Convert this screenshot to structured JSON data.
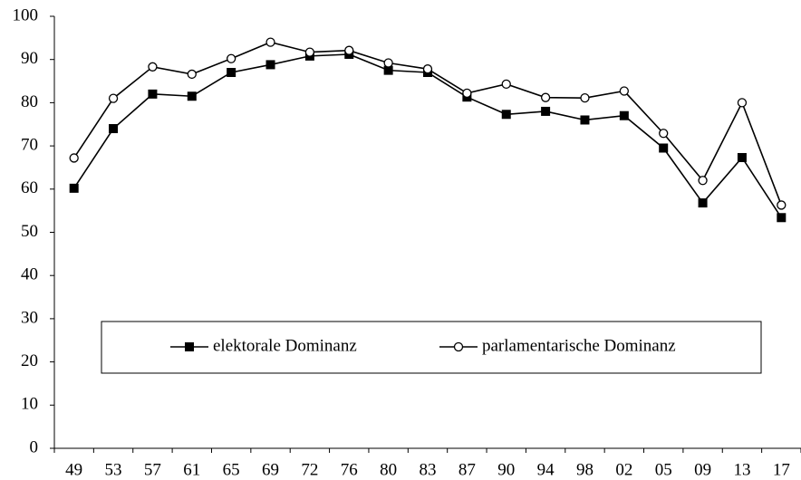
{
  "chart_data": {
    "type": "line",
    "categories": [
      "49",
      "53",
      "57",
      "61",
      "65",
      "69",
      "72",
      "76",
      "80",
      "83",
      "87",
      "90",
      "94",
      "98",
      "02",
      "05",
      "09",
      "13",
      "17"
    ],
    "series": [
      {
        "name": "elektorale Dominanz",
        "color": "#000000",
        "marker": "square",
        "values": [
          60.2,
          74,
          82,
          81.5,
          87,
          88.8,
          90.8,
          91.2,
          87.5,
          87,
          81.3,
          77.3,
          78,
          76,
          77,
          69.5,
          56.8,
          67.3,
          53.4
        ]
      },
      {
        "name": "parlamentarische Dominanz",
        "color": "#000000",
        "marker": "circle",
        "values": [
          67.2,
          81,
          88.3,
          86.6,
          90.2,
          94,
          91.7,
          92.1,
          89.2,
          87.8,
          82.2,
          84.3,
          81.2,
          81.1,
          82.7,
          72.9,
          62,
          80,
          56.3
        ]
      }
    ],
    "ylim": [
      0,
      100
    ],
    "yticks": [
      0,
      10,
      20,
      30,
      40,
      50,
      60,
      70,
      80,
      90,
      100
    ],
    "grid": false
  }
}
